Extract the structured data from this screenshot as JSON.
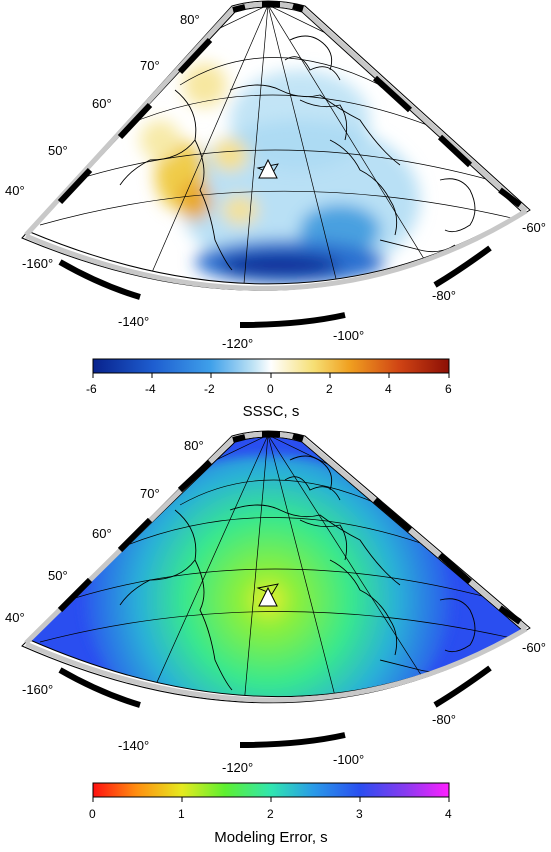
{
  "maps": [
    {
      "id": "sssc",
      "lat_labels": [
        "80°",
        "70°",
        "60°",
        "50°",
        "40°"
      ],
      "lon_labels": [
        "-160°",
        "-140°",
        "-120°",
        "-100°",
        "-80°",
        "-60°"
      ],
      "colorbar": {
        "title": "SSSC, s",
        "ticks": [
          "-6",
          "-4",
          "-2",
          "0",
          "2",
          "4",
          "6"
        ],
        "colors": [
          "#08228c",
          "#1e5ed0",
          "#3fa0ea",
          "#bfe3f5",
          "#ffffff",
          "#f6df74",
          "#f0a020",
          "#d04414",
          "#8c0f05"
        ]
      }
    },
    {
      "id": "modeling-error",
      "lat_labels": [
        "80°",
        "70°",
        "60°",
        "50°",
        "40°"
      ],
      "lon_labels": [
        "-160°",
        "-140°",
        "-120°",
        "-100°",
        "-80°",
        "-60°"
      ],
      "colorbar": {
        "title": "Modeling Error, s",
        "ticks": [
          "0",
          "1",
          "2",
          "3",
          "4"
        ],
        "colors": [
          "#ff1010",
          "#ff8c10",
          "#e6ea20",
          "#5ef030",
          "#30e6b0",
          "#2a9ae8",
          "#2a4ef0",
          "#8a3af0",
          "#ff20ff"
        ]
      }
    }
  ],
  "station": {
    "name": "station-triangle"
  }
}
